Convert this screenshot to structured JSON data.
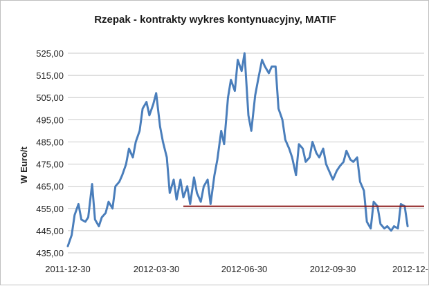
{
  "chart_data": {
    "type": "line",
    "title": "Rzepak - kontrakty wykres kontynuacyjny, MATIF",
    "ylabel": "W Euro/t",
    "xlabel": "",
    "ylim": [
      435,
      525
    ],
    "y_ticks": [
      "525,00",
      "515,00",
      "505,00",
      "495,00",
      "485,00",
      "475,00",
      "465,00",
      "455,00",
      "445,00",
      "435,00"
    ],
    "y_tick_values": [
      525,
      515,
      505,
      495,
      485,
      475,
      465,
      455,
      445,
      435
    ],
    "x_ticks": [
      "2011-12-30",
      "2012-03-30",
      "2012-06-30",
      "2012-09-30",
      "2012-12-"
    ],
    "x_range": [
      "2011-12-30",
      "2012-12-31"
    ],
    "grid": true,
    "legend": "none",
    "colors": {
      "series": "#4a7ebb",
      "reference": "#8b1a1a",
      "grid": "#c8c8c8"
    },
    "series": [
      {
        "x": [
          "2011-12-30",
          "2012-01-03",
          "2012-01-06",
          "2012-01-10",
          "2012-01-13",
          "2012-01-17",
          "2012-01-20",
          "2012-01-24",
          "2012-01-27",
          "2012-01-31",
          "2012-02-03",
          "2012-02-07",
          "2012-02-10",
          "2012-02-14",
          "2012-02-17",
          "2012-02-21",
          "2012-02-24",
          "2012-02-28",
          "2012-03-02",
          "2012-03-06",
          "2012-03-09",
          "2012-03-13",
          "2012-03-16",
          "2012-03-20",
          "2012-03-23",
          "2012-03-27",
          "2012-03-30",
          "2012-04-03",
          "2012-04-06",
          "2012-04-10",
          "2012-04-13",
          "2012-04-17",
          "2012-04-20",
          "2012-04-24",
          "2012-04-27",
          "2012-05-01",
          "2012-05-04",
          "2012-05-08",
          "2012-05-11",
          "2012-05-15",
          "2012-05-18",
          "2012-05-22",
          "2012-05-25",
          "2012-05-29",
          "2012-06-01",
          "2012-06-05",
          "2012-06-08",
          "2012-06-12",
          "2012-06-15",
          "2012-06-19",
          "2012-06-22",
          "2012-06-26",
          "2012-06-29",
          "2012-07-03",
          "2012-07-06",
          "2012-07-10",
          "2012-07-13",
          "2012-07-17",
          "2012-07-20",
          "2012-07-24",
          "2012-07-27",
          "2012-07-31",
          "2012-08-03",
          "2012-08-07",
          "2012-08-10",
          "2012-08-14",
          "2012-08-17",
          "2012-08-21",
          "2012-08-24",
          "2012-08-28",
          "2012-08-31",
          "2012-09-04",
          "2012-09-07",
          "2012-09-11",
          "2012-09-14",
          "2012-09-18",
          "2012-09-21",
          "2012-09-25",
          "2012-09-28",
          "2012-10-02",
          "2012-10-05",
          "2012-10-09",
          "2012-10-12",
          "2012-10-16",
          "2012-10-19",
          "2012-10-23",
          "2012-10-26",
          "2012-10-30",
          "2012-11-02",
          "2012-11-06",
          "2012-11-09",
          "2012-11-13",
          "2012-11-16",
          "2012-11-20",
          "2012-11-23",
          "2012-11-27",
          "2012-11-30",
          "2012-12-04",
          "2012-12-07",
          "2012-12-11",
          "2012-12-14"
        ],
        "values": [
          438,
          443,
          452,
          457,
          450,
          449,
          451,
          466,
          450,
          447,
          451,
          453,
          458,
          455,
          465,
          467,
          470,
          475,
          482,
          478,
          485,
          490,
          500,
          503,
          497,
          502,
          507,
          492,
          485,
          478,
          462,
          468,
          459,
          468,
          460,
          465,
          457,
          469,
          462,
          458,
          465,
          468,
          457,
          470,
          477,
          490,
          484,
          505,
          513,
          508,
          522,
          517,
          525,
          497,
          490,
          506,
          513,
          522,
          519,
          516,
          519,
          519,
          500,
          495,
          486,
          482,
          478,
          470,
          484,
          482,
          476,
          478,
          485,
          480,
          478,
          482,
          475,
          471,
          468,
          472,
          474,
          476,
          481,
          477,
          476,
          478,
          467,
          463,
          449,
          446,
          458,
          456,
          448,
          446,
          447,
          445,
          447,
          446,
          457,
          456,
          447
        ]
      }
    ],
    "reference_line": {
      "y": 456,
      "x_start": "2012-04-27",
      "x_end": "2012-12-31"
    }
  }
}
